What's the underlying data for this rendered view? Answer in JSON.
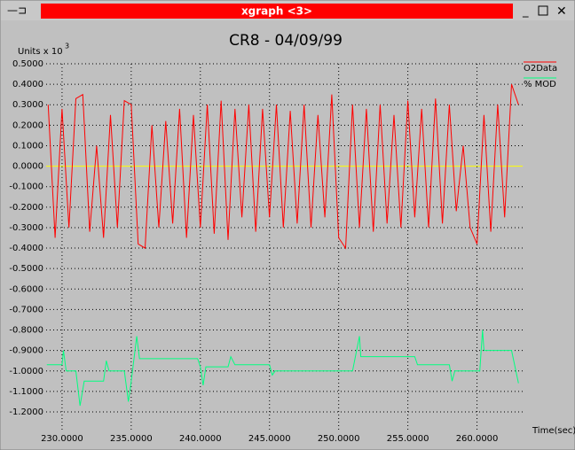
{
  "window": {
    "title": "xgraph <3>"
  },
  "chart_data": {
    "type": "line",
    "title": "CR8 - 04/09/99",
    "ylabel": "Units x 10",
    "ylabel_exponent": "3",
    "xlabel": "Time(sec)",
    "xlim": [
      228.85,
      263.3
    ],
    "ylim": [
      -1.2,
      0.5
    ],
    "xticks": [
      {
        "value": 230,
        "label": "230.0000"
      },
      {
        "value": 235,
        "label": "235.0000"
      },
      {
        "value": 240,
        "label": "240.0000"
      },
      {
        "value": 245,
        "label": "245.0000"
      },
      {
        "value": 250,
        "label": "250.0000"
      },
      {
        "value": 255,
        "label": "255.0000"
      },
      {
        "value": 260,
        "label": "260.0000"
      }
    ],
    "yticks": [
      {
        "value": 0.5,
        "label": "0.5000"
      },
      {
        "value": 0.4,
        "label": "0.4000"
      },
      {
        "value": 0.3,
        "label": "0.3000"
      },
      {
        "value": 0.2,
        "label": "0.2000"
      },
      {
        "value": 0.1,
        "label": "0.1000"
      },
      {
        "value": 0,
        "label": "0.0000"
      },
      {
        "value": -0.1,
        "label": "-0.1000"
      },
      {
        "value": -0.2,
        "label": "-0.2000"
      },
      {
        "value": -0.3,
        "label": "-0.3000"
      },
      {
        "value": -0.4,
        "label": "-0.4000"
      },
      {
        "value": -0.5,
        "label": "-0.5000"
      },
      {
        "value": -0.6,
        "label": "-0.6000"
      },
      {
        "value": -0.7,
        "label": "-0.7000"
      },
      {
        "value": -0.8,
        "label": "-0.8000"
      },
      {
        "value": -0.9,
        "label": "-0.9000"
      },
      {
        "value": -1.0,
        "label": "-1.0000"
      },
      {
        "value": -1.1,
        "label": "-1.1000"
      },
      {
        "value": -1.2,
        "label": "-1.2000"
      }
    ],
    "grid": true,
    "zero_line_color": "#ffff00",
    "legend": "top-right",
    "series": [
      {
        "name": "O2Data",
        "color": "#ff0000",
        "x": [
          229.0,
          229.5,
          230.0,
          230.5,
          231.0,
          231.5,
          232.0,
          232.5,
          233.0,
          233.5,
          234.0,
          234.5,
          235.0,
          235.5,
          236.0,
          236.5,
          237.0,
          237.5,
          238.0,
          238.5,
          239.0,
          239.5,
          240.0,
          240.5,
          241.0,
          241.5,
          242.0,
          242.5,
          243.0,
          243.5,
          244.0,
          244.5,
          245.0,
          245.5,
          246.0,
          246.5,
          247.0,
          247.5,
          248.0,
          248.5,
          249.0,
          249.5,
          250.0,
          250.5,
          251.0,
          251.5,
          252.0,
          252.5,
          253.0,
          253.5,
          254.0,
          254.5,
          255.0,
          255.5,
          256.0,
          256.5,
          257.0,
          257.5,
          258.0,
          258.5,
          259.0,
          259.5,
          260.0,
          260.5,
          261.0,
          261.5,
          262.0,
          262.5,
          263.0
        ],
        "values": [
          0.3,
          -0.35,
          0.28,
          -0.3,
          0.33,
          0.35,
          -0.32,
          0.1,
          -0.35,
          0.25,
          -0.3,
          0.32,
          0.3,
          -0.38,
          -0.4,
          0.2,
          -0.3,
          0.22,
          -0.28,
          0.28,
          -0.35,
          0.25,
          -0.3,
          0.3,
          -0.33,
          0.32,
          -0.36,
          0.28,
          -0.25,
          0.3,
          -0.32,
          0.28,
          -0.25,
          0.3,
          -0.3,
          0.27,
          -0.28,
          0.3,
          -0.3,
          0.25,
          -0.25,
          0.35,
          -0.35,
          -0.4,
          0.3,
          -0.3,
          0.28,
          -0.32,
          0.3,
          -0.28,
          0.25,
          -0.3,
          0.32,
          -0.25,
          0.28,
          -0.3,
          0.33,
          -0.28,
          0.3,
          -0.22,
          0.1,
          -0.3,
          -0.38,
          0.25,
          -0.32,
          0.3,
          -0.25,
          0.4,
          0.3
        ]
      },
      {
        "name": "% MOD",
        "color": "#00ff80",
        "x": [
          228.9,
          230.0,
          230.1,
          230.3,
          231.0,
          231.3,
          231.6,
          233.0,
          233.2,
          233.4,
          234.5,
          234.8,
          235.0,
          235.4,
          235.6,
          239.8,
          240.0,
          240.2,
          240.4,
          242.0,
          242.2,
          242.5,
          245.0,
          245.2,
          245.4,
          251.0,
          251.3,
          251.5,
          251.6,
          255.5,
          255.7,
          258.0,
          258.2,
          258.4,
          260.2,
          260.4,
          260.5,
          262.5,
          263.0
        ],
        "values": [
          -0.97,
          -0.97,
          -0.9,
          -1.0,
          -1.0,
          -1.17,
          -1.05,
          -1.05,
          -0.95,
          -1.0,
          -1.0,
          -1.15,
          -1.05,
          -0.83,
          -0.94,
          -0.94,
          -0.98,
          -1.07,
          -0.98,
          -0.98,
          -0.93,
          -0.97,
          -0.97,
          -1.02,
          -1.0,
          -1.0,
          -0.9,
          -0.83,
          -0.93,
          -0.93,
          -0.97,
          -0.97,
          -1.05,
          -1.0,
          -1.0,
          -0.8,
          -0.9,
          -0.9,
          -1.06
        ]
      }
    ]
  }
}
